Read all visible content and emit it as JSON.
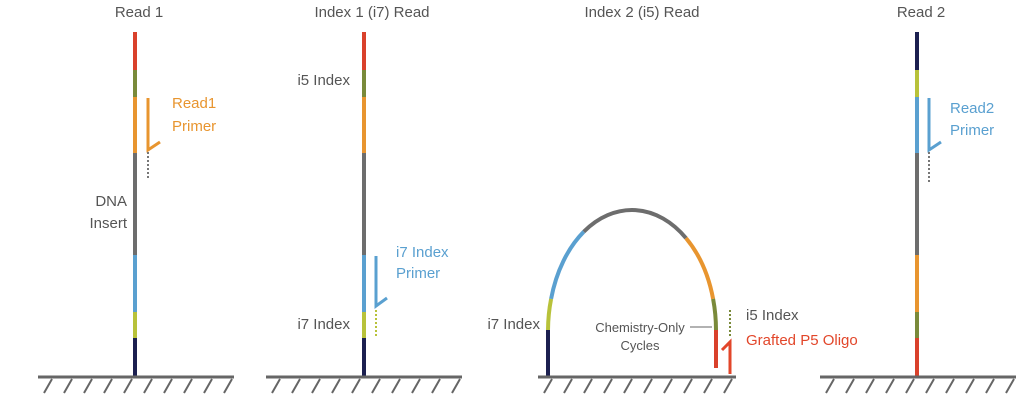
{
  "panels": [
    {
      "title": "Read 1",
      "labels": [
        {
          "lines": [
            "Read1",
            "Primer"
          ]
        },
        {
          "lines": [
            "DNA",
            "Insert"
          ]
        }
      ]
    },
    {
      "title": "Index 1 (i7) Read",
      "labels": [
        {
          "lines": [
            "i5 Index"
          ]
        },
        {
          "lines": [
            "i7 Index",
            "Primer"
          ]
        },
        {
          "lines": [
            "i7 Index"
          ]
        }
      ]
    },
    {
      "title": "Index 2 (i5) Read",
      "labels": [
        {
          "lines": [
            "i7 Index"
          ]
        },
        {
          "lines": [
            "Chemistry-Only",
            "Cycles"
          ]
        },
        {
          "lines": [
            "i5 Index"
          ]
        },
        {
          "lines": [
            "Grafted P5 Oligo"
          ]
        }
      ]
    },
    {
      "title": "Read 2",
      "labels": [
        {
          "lines": [
            "Read2",
            "Primer"
          ]
        }
      ]
    }
  ]
}
